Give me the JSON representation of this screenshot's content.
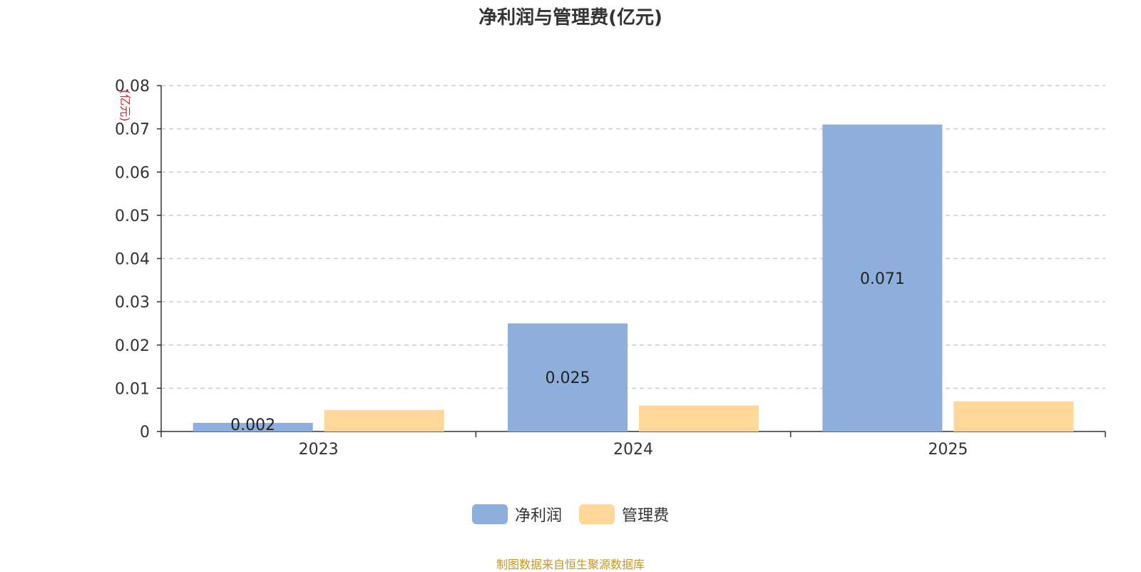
{
  "chart_data": {
    "type": "bar",
    "title": "净利润与管理费(亿元)",
    "ylabel": "(亿元)",
    "xlabel": "",
    "categories": [
      "2023",
      "2024",
      "2025"
    ],
    "series": [
      {
        "name": "净利润",
        "values": [
          0.002,
          0.025,
          0.071
        ],
        "color": "#8eaedb",
        "data_labels": [
          "0.002",
          "0.025",
          "0.071"
        ]
      },
      {
        "name": "管理费",
        "values": [
          0.005,
          0.006,
          0.007
        ],
        "color": "#ffd899"
      }
    ],
    "ylim": [
      0,
      0.08
    ],
    "yticks": [
      "0",
      "0.01",
      "0.02",
      "0.03",
      "0.04",
      "0.05",
      "0.06",
      "0.07",
      "0.08"
    ],
    "grid": true,
    "legend_position": "bottom-center"
  },
  "source_note": "制图数据来自恒生聚源数据库"
}
